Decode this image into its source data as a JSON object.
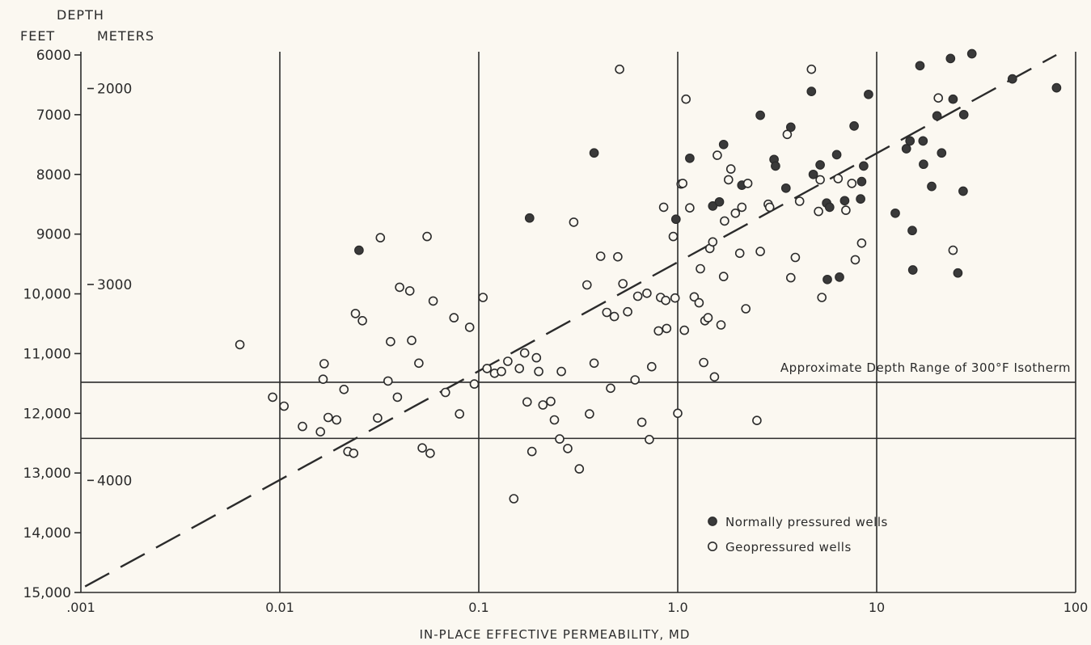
{
  "chart_data": {
    "type": "scatter",
    "title": "",
    "xlabel": "IN-PLACE EFFECTIVE PERMEABILITY, MD",
    "ylabel_heading": "DEPTH",
    "ylabel_feet": "FEET",
    "ylabel_meters": "METERS",
    "x_scale": "log",
    "xlim": [
      0.001,
      100
    ],
    "ylim": [
      6000,
      15000
    ],
    "y_inverted": true,
    "grid": "vertical at decades",
    "x_ticks": [
      {
        "value": 0.001,
        "label": ".001"
      },
      {
        "value": 0.01,
        "label": "0.01"
      },
      {
        "value": 0.1,
        "label": "0.1"
      },
      {
        "value": 1,
        "label": "1.0"
      },
      {
        "value": 10,
        "label": "10"
      },
      {
        "value": 100,
        "label": "100"
      }
    ],
    "y_ticks_feet": [
      {
        "value": 6000,
        "label": "6000"
      },
      {
        "value": 7000,
        "label": "7000"
      },
      {
        "value": 8000,
        "label": "8000"
      },
      {
        "value": 9000,
        "label": "9000"
      },
      {
        "value": 10000,
        "label": "10,000"
      },
      {
        "value": 11000,
        "label": "11,000"
      },
      {
        "value": 12000,
        "label": "12,000"
      },
      {
        "value": 13000,
        "label": "13,000"
      },
      {
        "value": 14000,
        "label": "14,000"
      },
      {
        "value": 15000,
        "label": "15,000"
      }
    ],
    "y_ticks_meters": [
      {
        "value": 2000,
        "label": "2000"
      },
      {
        "value": 3000,
        "label": "3000"
      },
      {
        "value": 4000,
        "label": "4000"
      }
    ],
    "isotherm_band": {
      "top": 11480,
      "bottom": 12420,
      "label": "Approximate Depth Range of 300°F Isotherm"
    },
    "trend_line": {
      "x": [
        0.00105,
        80
      ],
      "y": [
        14900,
        6000
      ],
      "style": "dashed"
    },
    "legend": {
      "placement": "bottom-right",
      "entries": [
        "Normally pressured wells",
        "Geopressured wells"
      ]
    },
    "series": [
      {
        "name": "Normally pressured wells",
        "marker": "filled-circle",
        "points": [
          [
            0.025,
            9270
          ],
          [
            0.18,
            8730
          ],
          [
            0.38,
            7640
          ],
          [
            0.98,
            8750
          ],
          [
            1.15,
            7730
          ],
          [
            1.5,
            8530
          ],
          [
            1.62,
            8460
          ],
          [
            1.7,
            7500
          ],
          [
            2.1,
            8180
          ],
          [
            2.6,
            7010
          ],
          [
            3.05,
            7750
          ],
          [
            3.1,
            7860
          ],
          [
            3.5,
            8230
          ],
          [
            3.7,
            7210
          ],
          [
            4.7,
            6610
          ],
          [
            4.8,
            8000
          ],
          [
            5.2,
            7840
          ],
          [
            5.6,
            8480
          ],
          [
            5.65,
            9760
          ],
          [
            5.8,
            8550
          ],
          [
            6.3,
            7670
          ],
          [
            6.5,
            9720
          ],
          [
            6.9,
            8440
          ],
          [
            7.7,
            7190
          ],
          [
            8.3,
            8410
          ],
          [
            8.4,
            8120
          ],
          [
            8.6,
            7860
          ],
          [
            9.1,
            6660
          ],
          [
            12.4,
            8650
          ],
          [
            14.1,
            7570
          ],
          [
            14.7,
            7440
          ],
          [
            15.1,
            8940
          ],
          [
            15.2,
            9600
          ],
          [
            16.5,
            6180
          ],
          [
            17.1,
            7440
          ],
          [
            17.2,
            7830
          ],
          [
            18.9,
            8200
          ],
          [
            20.1,
            7020
          ],
          [
            21.2,
            7640
          ],
          [
            23.5,
            6060
          ],
          [
            24.2,
            6740
          ],
          [
            25.6,
            9650
          ],
          [
            27.2,
            8280
          ],
          [
            27.4,
            7000
          ],
          [
            30.1,
            5980
          ],
          [
            48.1,
            6400
          ],
          [
            80.2,
            6550
          ]
        ]
      },
      {
        "name": "Geopressured wells",
        "marker": "open-circle",
        "points": [
          [
            0.0063,
            10850
          ],
          [
            0.0092,
            11730
          ],
          [
            0.0105,
            11880
          ],
          [
            0.013,
            12220
          ],
          [
            0.016,
            12310
          ],
          [
            0.0165,
            11430
          ],
          [
            0.0167,
            11170
          ],
          [
            0.0175,
            12070
          ],
          [
            0.0193,
            12110
          ],
          [
            0.021,
            11600
          ],
          [
            0.022,
            12640
          ],
          [
            0.024,
            10330
          ],
          [
            0.0235,
            12670
          ],
          [
            0.026,
            10450
          ],
          [
            0.031,
            12080
          ],
          [
            0.032,
            9060
          ],
          [
            0.035,
            11460
          ],
          [
            0.036,
            10800
          ],
          [
            0.039,
            11730
          ],
          [
            0.04,
            9890
          ],
          [
            0.045,
            9950
          ],
          [
            0.046,
            10780
          ],
          [
            0.05,
            11160
          ],
          [
            0.052,
            12580
          ],
          [
            0.055,
            9040
          ],
          [
            0.057,
            12670
          ],
          [
            0.059,
            10120
          ],
          [
            0.068,
            11650
          ],
          [
            0.075,
            10400
          ],
          [
            0.08,
            12010
          ],
          [
            0.09,
            10560
          ],
          [
            0.095,
            11510
          ],
          [
            0.105,
            10060
          ],
          [
            0.11,
            11250
          ],
          [
            0.12,
            11330
          ],
          [
            0.13,
            11300
          ],
          [
            0.14,
            11130
          ],
          [
            0.15,
            13430
          ],
          [
            0.16,
            11250
          ],
          [
            0.17,
            10990
          ],
          [
            0.175,
            11810
          ],
          [
            0.185,
            12640
          ],
          [
            0.195,
            11070
          ],
          [
            0.2,
            11300
          ],
          [
            0.21,
            11860
          ],
          [
            0.23,
            11800
          ],
          [
            0.24,
            12110
          ],
          [
            0.255,
            12430
          ],
          [
            0.26,
            11300
          ],
          [
            0.28,
            12590
          ],
          [
            0.3,
            8800
          ],
          [
            0.32,
            12930
          ],
          [
            0.35,
            9850
          ],
          [
            0.36,
            12010
          ],
          [
            0.38,
            11160
          ],
          [
            0.41,
            9370
          ],
          [
            0.44,
            10310
          ],
          [
            0.46,
            11580
          ],
          [
            0.48,
            10380
          ],
          [
            0.5,
            9380
          ],
          [
            0.51,
            6240
          ],
          [
            0.53,
            9830
          ],
          [
            0.56,
            10300
          ],
          [
            0.61,
            11440
          ],
          [
            0.63,
            10040
          ],
          [
            0.66,
            12150
          ],
          [
            0.7,
            9990
          ],
          [
            0.72,
            12440
          ],
          [
            0.74,
            11220
          ],
          [
            0.8,
            10620
          ],
          [
            0.82,
            10060
          ],
          [
            0.85,
            8550
          ],
          [
            0.87,
            10110
          ],
          [
            0.88,
            10580
          ],
          [
            0.95,
            9040
          ],
          [
            0.97,
            10070
          ],
          [
            1.0,
            12000
          ],
          [
            1.04,
            8160
          ],
          [
            1.06,
            8150
          ],
          [
            1.08,
            10610
          ],
          [
            1.1,
            6740
          ],
          [
            1.15,
            8560
          ],
          [
            1.21,
            10050
          ],
          [
            1.28,
            10150
          ],
          [
            1.3,
            9580
          ],
          [
            1.35,
            11150
          ],
          [
            1.37,
            10450
          ],
          [
            1.42,
            10400
          ],
          [
            1.45,
            9240
          ],
          [
            1.5,
            9130
          ],
          [
            1.53,
            11390
          ],
          [
            1.58,
            7680
          ],
          [
            1.65,
            10520
          ],
          [
            1.7,
            9710
          ],
          [
            1.72,
            8780
          ],
          [
            1.8,
            8090
          ],
          [
            1.85,
            7910
          ],
          [
            1.95,
            8650
          ],
          [
            2.05,
            9320
          ],
          [
            2.1,
            8550
          ],
          [
            2.2,
            10250
          ],
          [
            2.25,
            8150
          ],
          [
            2.5,
            12120
          ],
          [
            2.6,
            9290
          ],
          [
            2.85,
            8500
          ],
          [
            2.9,
            8550
          ],
          [
            3.55,
            7330
          ],
          [
            3.7,
            9730
          ],
          [
            3.9,
            9390
          ],
          [
            4.1,
            8450
          ],
          [
            4.7,
            6240
          ],
          [
            5.1,
            8620
          ],
          [
            5.2,
            8090
          ],
          [
            5.3,
            10060
          ],
          [
            6.4,
            8070
          ],
          [
            7.0,
            8600
          ],
          [
            7.5,
            8150
          ],
          [
            7.8,
            9430
          ],
          [
            8.4,
            9150
          ],
          [
            20.4,
            6720
          ],
          [
            24.2,
            9270
          ]
        ]
      }
    ]
  }
}
